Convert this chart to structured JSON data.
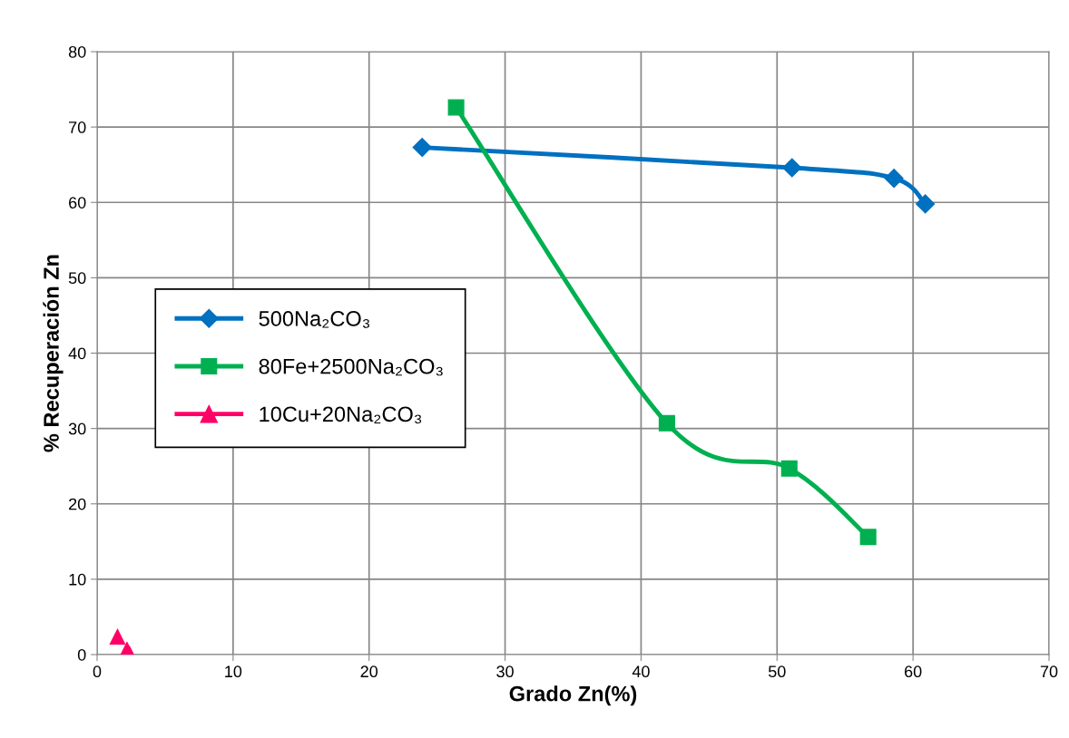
{
  "chart_data": {
    "type": "line",
    "xlabel": "Grado Zn(%)",
    "ylabel": "% Recuperación Zn",
    "xlim": [
      0,
      70
    ],
    "xticks": [
      0,
      10,
      20,
      30,
      40,
      50,
      60,
      70
    ],
    "ylim": [
      0,
      80
    ],
    "yticks": [
      0,
      10,
      20,
      30,
      40,
      50,
      60,
      70,
      80
    ],
    "grid": true,
    "legend": "left",
    "series": [
      {
        "name": "500Na₂CO₃",
        "color": "#0070c0",
        "marker": "diamond",
        "x": [
          23.9,
          51.1,
          58.6,
          60.9
        ],
        "values": [
          67.3,
          64.6,
          63.2,
          59.8
        ]
      },
      {
        "name": "80Fe+2500Na₂CO₃",
        "color": "#00b050",
        "marker": "square",
        "x": [
          26.4,
          41.9,
          50.9,
          56.7
        ],
        "values": [
          72.6,
          30.7,
          24.7,
          15.6
        ]
      },
      {
        "name": "10Cu+20Na₂CO₃",
        "type": "scatter",
        "color": "#ff0066",
        "marker": "triangle",
        "x": [
          1.5,
          2.2,
          2.4
        ],
        "values": [
          2.4,
          0.7,
          0.1
        ]
      }
    ]
  }
}
